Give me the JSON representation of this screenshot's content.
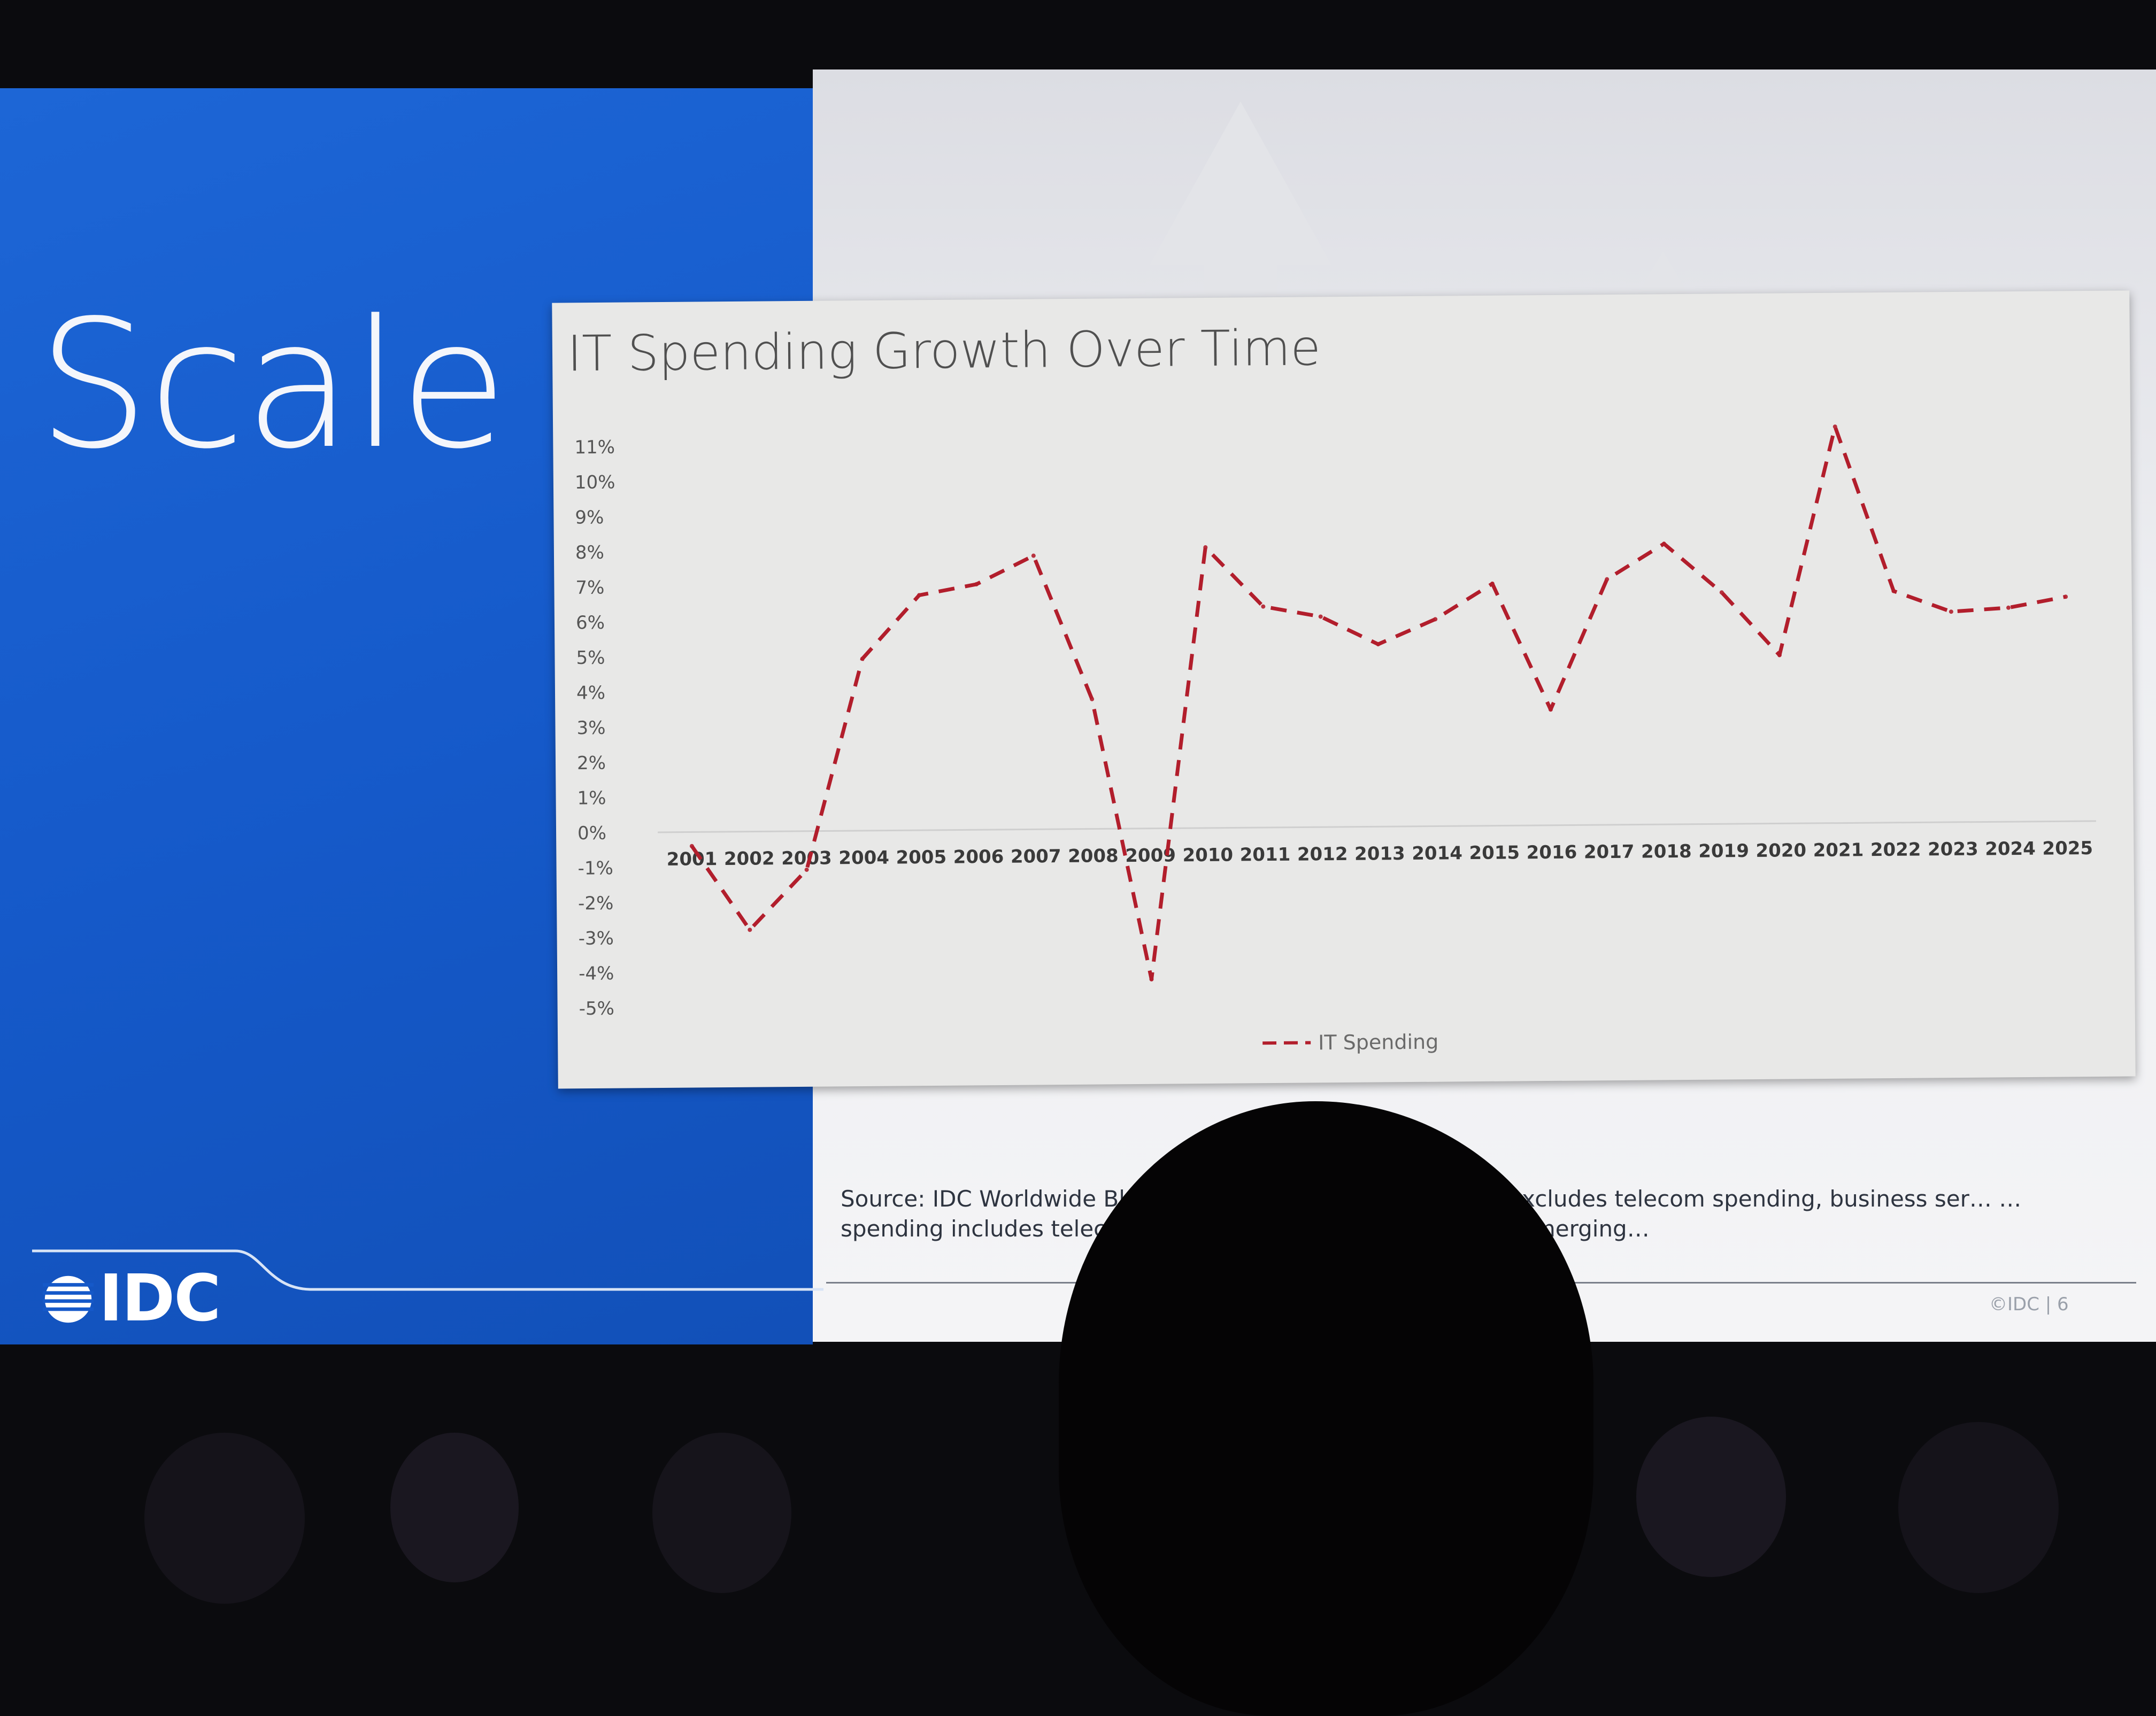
{
  "slide": {
    "title": "Scale",
    "logo_text": "IDC",
    "source_note": "Source: IDC Worldwide Bl… …nstant currency; IT Spending excludes telecom spending, business ser… … spending includes telecom spending, business services and emerging…",
    "copyright": "©IDC |  6",
    "colors": {
      "left_panel": "#1559c9",
      "line": "#b21e2c"
    }
  },
  "chart_data": {
    "type": "line",
    "title": "IT Spending Growth Over Time",
    "categories": [
      "2001",
      "2002",
      "2003",
      "2004",
      "2005",
      "2006",
      "2007",
      "2008",
      "2009",
      "2010",
      "2011",
      "2012",
      "2013",
      "2014",
      "2015",
      "2016",
      "2017",
      "2018",
      "2019",
      "2020",
      "2021",
      "2022",
      "2023",
      "2024",
      "2025"
    ],
    "series": [
      {
        "name": "IT Spending",
        "values": [
          -0.4,
          -2.8,
          -1.1,
          4.9,
          6.7,
          7.0,
          7.8,
          3.7,
          -4.3,
          8.0,
          6.3,
          6.0,
          5.2,
          5.9,
          6.9,
          3.3,
          7.0,
          8.0,
          6.6,
          4.8,
          11.3,
          6.6,
          6.0,
          6.1,
          6.4
        ],
        "style": "dashed",
        "color": "#b21e2c"
      }
    ],
    "ylim": [
      -5,
      11
    ],
    "yticks": [
      "11%",
      "10%",
      "9%",
      "8%",
      "7%",
      "6%",
      "5%",
      "4%",
      "3%",
      "2%",
      "1%",
      "0%",
      "-1%",
      "-2%",
      "-3%",
      "-4%",
      "-5%"
    ],
    "ytick_values": [
      11,
      10,
      9,
      8,
      7,
      6,
      5,
      4,
      3,
      2,
      1,
      0,
      -1,
      -2,
      -3,
      -4,
      -5
    ],
    "xlabel": "",
    "ylabel": "",
    "grid": false,
    "legend": "bottom-center"
  }
}
